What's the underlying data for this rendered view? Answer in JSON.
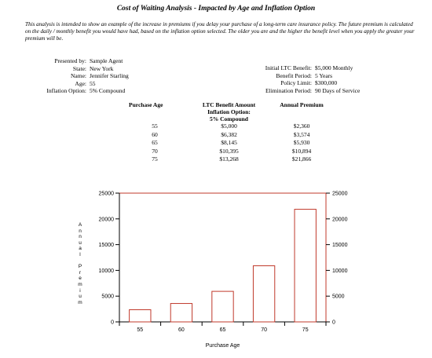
{
  "header": {
    "title": "Cost of Waiting Analysis - Impacted by Age and Inflation Option",
    "intro": "This analysis is intended to show an example of the increase in premiums if you delay your purchase of a long-term care insurance policy.  The future premium is calculated on the daily / monthly benefit you would have had, based on the inflation option selected.  The older you are and the higher the benefit level when you apply the greater your premium will be."
  },
  "client_info": [
    {
      "label": "Presented by:",
      "value": "Sample Agent"
    },
    {
      "label": "State:",
      "value": "New York"
    },
    {
      "label": "Name:",
      "value": "Jennifer Starling"
    },
    {
      "label": "Age:",
      "value": "55"
    },
    {
      "label": "Inflation Option:",
      "value": "5% Compound"
    }
  ],
  "policy_info": [
    {
      "label": "Initial LTC Benefit:",
      "value": "$5,000 Monthly"
    },
    {
      "label": "Benefit Period:",
      "value": "5 Years"
    },
    {
      "label": "Policy Limit:",
      "value": "$300,000"
    },
    {
      "label": "Elimination Period:",
      "value": "90 Days of Service"
    }
  ],
  "premium_table": {
    "headers": {
      "age": "Purchase Age",
      "benefit_line1": "LTC Benefit Amount",
      "benefit_line2": "Inflation Option:",
      "benefit_line3": "5% Compound",
      "premium": "Annual Premium"
    },
    "rows": [
      {
        "age": "55",
        "benefit": "$5,000",
        "premium": "$2,360"
      },
      {
        "age": "60",
        "benefit": "$6,382",
        "premium": "$3,574"
      },
      {
        "age": "65",
        "benefit": "$8,145",
        "premium": "$5,930"
      },
      {
        "age": "70",
        "benefit": "$10,395",
        "premium": "$10,894"
      },
      {
        "age": "75",
        "benefit": "$13,268",
        "premium": "$21,866"
      }
    ]
  },
  "chart_data": {
    "type": "bar",
    "categories": [
      "55",
      "60",
      "65",
      "70",
      "75"
    ],
    "values": [
      2360,
      3574,
      5930,
      10894,
      21866
    ],
    "xlabel": "Purchase Age",
    "ylabel": "Annual Premium",
    "ylim": [
      0,
      25000
    ],
    "yticks": [
      0,
      5000,
      10000,
      15000,
      20000,
      25000
    ],
    "ytick_labels_left": [
      "0",
      "5000",
      "10000",
      "15000",
      "20000",
      "25000"
    ],
    "ytick_labels_right": [
      "0",
      "5000",
      "10000",
      "15000",
      "20000",
      "25000"
    ],
    "grid": false,
    "legend": "none",
    "bar_color": "#ffffff",
    "bar_edge_color": "#c0392b",
    "frame_color": "#c0392b"
  }
}
